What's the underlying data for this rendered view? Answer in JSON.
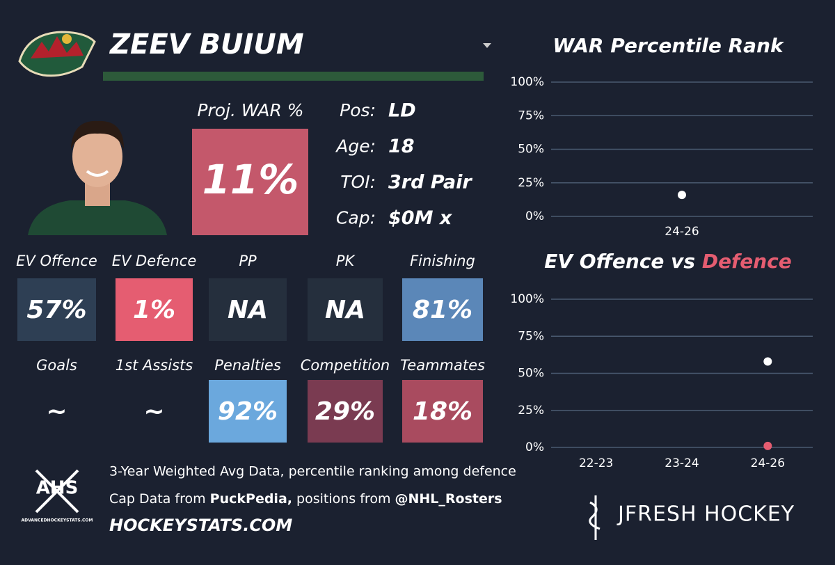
{
  "header": {
    "name": "ZEEV BUIUM"
  },
  "proj_war": {
    "label": "Proj. WAR %",
    "text": "11%",
    "color": "#c4586b"
  },
  "bio": [
    {
      "label": "Pos:",
      "value": "LD"
    },
    {
      "label": "Age:",
      "value": "18"
    },
    {
      "label": "TOI:",
      "value": "3rd Pair"
    },
    {
      "label": "Cap:",
      "value": "$0M x"
    }
  ],
  "tiles": [
    {
      "label": "EV Offence",
      "text": "57%",
      "color": "#2e3f54"
    },
    {
      "label": "EV Defence",
      "text": "1%",
      "color": "#e55d71"
    },
    {
      "label": "PP",
      "text": "NA",
      "color": "#252f3d"
    },
    {
      "label": "PK",
      "text": "NA",
      "color": "#252f3d"
    },
    {
      "label": "Finishing",
      "text": "81%",
      "color": "#5b87b8"
    },
    {
      "label": "Goals",
      "text": "~",
      "color": null
    },
    {
      "label": "1st Assists",
      "text": "~",
      "color": null
    },
    {
      "label": "Penalties",
      "text": "92%",
      "color": "#6ba8dd"
    },
    {
      "label": "Competition",
      "text": "29%",
      "color": "#7a3b51"
    },
    {
      "label": "Teammates",
      "text": "18%",
      "color": "#a94b5f"
    }
  ],
  "footer": {
    "line1": "3-Year Weighted Avg Data, percentile ranking among defence",
    "line2": [
      "Cap Data from ",
      "PuckPedia,",
      " positions from ",
      "@NHL_Rosters"
    ],
    "site": "HOCKEYSTATS.COM",
    "ahs": "AHS",
    "ahs_url": "ADVANCEDHOCKEYSTATS.COM",
    "brand": "JFRESH HOCKEY"
  },
  "chart_data": [
    {
      "type": "scatter",
      "title": "WAR Percentile Rank",
      "categories": [
        "24-26"
      ],
      "series": [
        {
          "color": "#ffffff",
          "values": [
            16
          ]
        }
      ],
      "ylim": [
        0,
        100
      ],
      "yticks": [
        {
          "value": 0,
          "label": "0%"
        },
        {
          "value": 25,
          "label": "25%"
        },
        {
          "value": 50,
          "label": "50%"
        },
        {
          "value": 75,
          "label": "75%"
        },
        {
          "value": 100,
          "label": "100%"
        }
      ],
      "grid": true
    },
    {
      "type": "scatter",
      "title": [
        "EV Offence vs ",
        "Defence"
      ],
      "title_colors": [
        "#ffffff",
        "#e55d71"
      ],
      "categories": [
        "22-23",
        "23-24",
        "24-26"
      ],
      "series": [
        {
          "color": "#ffffff",
          "values": [
            null,
            null,
            58
          ]
        },
        {
          "color": "#e55d71",
          "values": [
            null,
            null,
            1
          ]
        }
      ],
      "ylim": [
        0,
        100
      ],
      "yticks": [
        {
          "value": 0,
          "label": "0%"
        },
        {
          "value": 25,
          "label": "25%"
        },
        {
          "value": 50,
          "label": "50%"
        },
        {
          "value": 75,
          "label": "75%"
        },
        {
          "value": 100,
          "label": "100%"
        }
      ],
      "grid": true
    }
  ]
}
